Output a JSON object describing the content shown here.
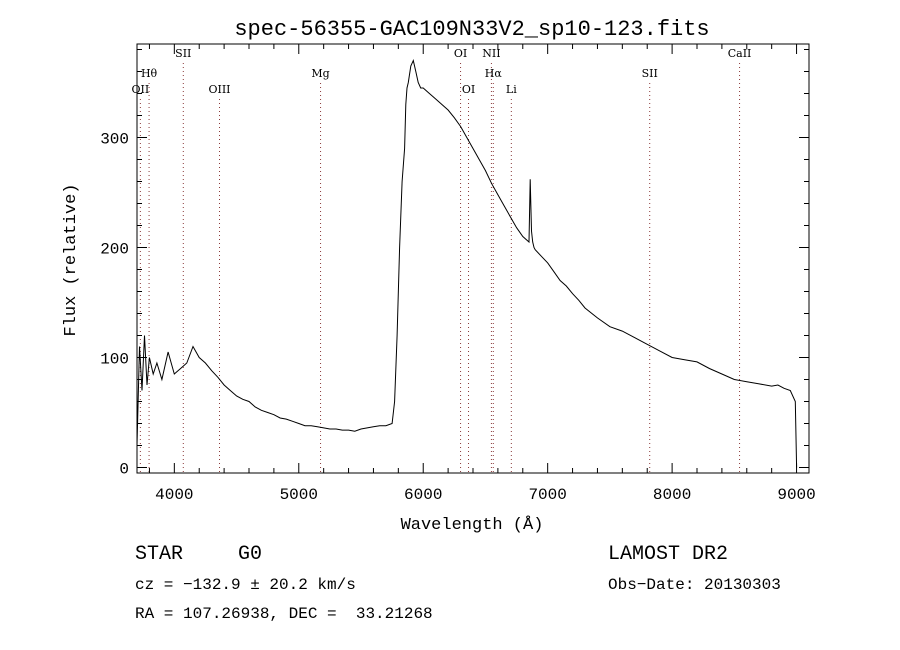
{
  "chart_data": {
    "type": "line",
    "title": "spec-56355-GAC109N33V2_sp10-123.fits",
    "xlabel": "Wavelength (Å)",
    "ylabel": "Flux (relative)",
    "xlim": [
      3700,
      9100
    ],
    "ylim": [
      -5,
      385
    ],
    "x_ticks": [
      4000,
      5000,
      6000,
      7000,
      8000,
      9000
    ],
    "y_ticks": [
      0,
      100,
      200,
      300
    ],
    "grid": false,
    "line_markers": [
      {
        "label": "OII",
        "x": 3727
      },
      {
        "label": "Hθ",
        "x": 3797
      },
      {
        "label": "SII",
        "x": 4072
      },
      {
        "label": "OIII",
        "x": 4363
      },
      {
        "label": "Mg",
        "x": 5175
      },
      {
        "label": "OI",
        "x": 6300
      },
      {
        "label": "OI",
        "x": 6364
      },
      {
        "label": "NII",
        "x": 6548
      },
      {
        "label": "Hα",
        "x": 6563
      },
      {
        "label": "Li",
        "x": 6708
      },
      {
        "label": "SII",
        "x": 7820
      },
      {
        "label": "CaII",
        "x": 8542
      }
    ],
    "series": [
      {
        "color": "#000000",
        "x": [
          3700,
          3720,
          3740,
          3760,
          3780,
          3800,
          3830,
          3860,
          3900,
          3950,
          4000,
          4050,
          4100,
          4150,
          4200,
          4250,
          4300,
          4350,
          4400,
          4450,
          4500,
          4550,
          4600,
          4650,
          4700,
          4750,
          4800,
          4850,
          4900,
          4950,
          5000,
          5050,
          5100,
          5150,
          5200,
          5250,
          5300,
          5350,
          5400,
          5450,
          5500,
          5550,
          5600,
          5650,
          5700,
          5750,
          5770,
          5790,
          5810,
          5830,
          5850,
          5860,
          5870,
          5880,
          5900,
          5920,
          5940,
          5960,
          5980,
          6000,
          6050,
          6100,
          6150,
          6200,
          6250,
          6300,
          6350,
          6400,
          6450,
          6500,
          6550,
          6600,
          6650,
          6700,
          6750,
          6800,
          6850,
          6860,
          6870,
          6880,
          6890,
          6900,
          6950,
          7000,
          7050,
          7100,
          7150,
          7200,
          7250,
          7300,
          7400,
          7500,
          7600,
          7700,
          7800,
          7900,
          8000,
          8100,
          8200,
          8300,
          8400,
          8500,
          8600,
          8700,
          8800,
          8850,
          8900,
          8950,
          8990,
          9000
        ],
        "y": [
          20,
          110,
          70,
          120,
          75,
          100,
          85,
          95,
          80,
          105,
          85,
          90,
          95,
          110,
          100,
          95,
          88,
          82,
          75,
          70,
          65,
          62,
          60,
          55,
          52,
          50,
          48,
          45,
          44,
          42,
          40,
          38,
          38,
          37,
          36,
          35,
          35,
          34,
          34,
          33,
          35,
          36,
          37,
          38,
          38,
          40,
          60,
          120,
          200,
          260,
          290,
          330,
          345,
          350,
          365,
          370,
          360,
          350,
          345,
          345,
          340,
          335,
          330,
          325,
          318,
          310,
          300,
          290,
          280,
          270,
          258,
          248,
          238,
          228,
          218,
          210,
          205,
          262,
          215,
          205,
          200,
          198,
          192,
          186,
          178,
          170,
          165,
          158,
          152,
          145,
          136,
          128,
          124,
          118,
          112,
          106,
          100,
          98,
          96,
          90,
          85,
          80,
          78,
          76,
          74,
          75,
          72,
          70,
          60,
          0
        ]
      }
    ]
  },
  "info": {
    "object_class": "STAR",
    "subclass": "G0",
    "survey": "LAMOST DR2",
    "cz": "cz = −132.9 ± 20.2 km/s",
    "obs_date": "Obs−Date: 20130303",
    "coords": "RA = 107.26938, DEC =  33.21268"
  }
}
